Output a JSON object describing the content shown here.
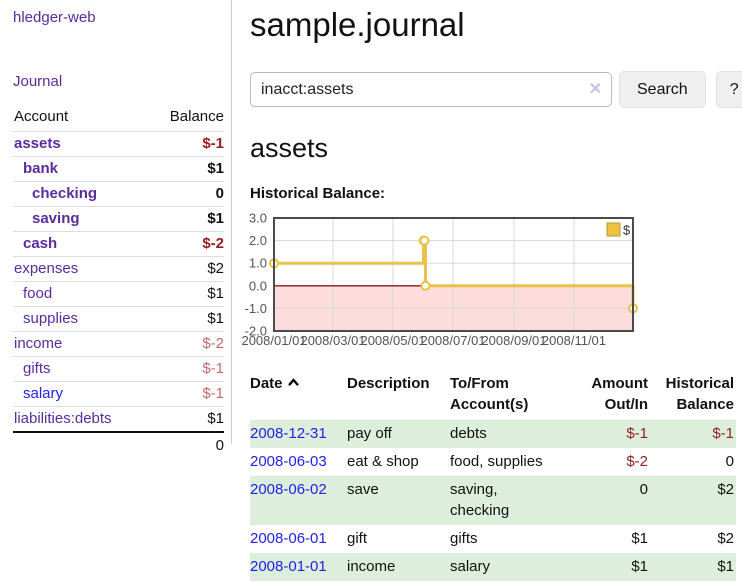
{
  "sidebar": {
    "brand": "hledger-web",
    "journal_link": "Journal",
    "accounts_table": {
      "col_account": "Account",
      "col_balance": "Balance",
      "rows": [
        {
          "name": "assets",
          "balance": "$-1",
          "level": 1,
          "bold": true,
          "balance_style": "neg-strong"
        },
        {
          "name": "bank",
          "balance": "$1",
          "level": 2,
          "bold": true,
          "balance_style": "strong"
        },
        {
          "name": "checking",
          "balance": "0",
          "level": 3,
          "bold": true,
          "balance_style": "strong"
        },
        {
          "name": "saving",
          "balance": "$1",
          "level": 3,
          "bold": true,
          "balance_style": "strong"
        },
        {
          "name": "cash",
          "balance": "$-2",
          "level": 2,
          "bold": true,
          "balance_style": "neg-strong"
        },
        {
          "name": "expenses",
          "balance": "$2",
          "level": 1,
          "bold": false,
          "balance_style": "plain"
        },
        {
          "name": "food",
          "balance": "$1",
          "level": 2,
          "bold": false,
          "balance_style": "plain"
        },
        {
          "name": "supplies",
          "balance": "$1",
          "level": 2,
          "bold": false,
          "balance_style": "plain"
        },
        {
          "name": "income",
          "balance": "$-2",
          "level": 1,
          "bold": false,
          "balance_style": "neg-dim"
        },
        {
          "name": "gifts",
          "balance": "$-1",
          "level": 2,
          "bold": false,
          "balance_style": "neg-dim"
        },
        {
          "name": "salary",
          "balance": "$-1",
          "level": 2,
          "bold": false,
          "link_color": "blue",
          "balance_style": "neg-dim"
        },
        {
          "name": "liabilities:debts",
          "balance": "$1",
          "level": 1,
          "bold": false,
          "balance_style": "plain"
        }
      ],
      "total": "0"
    }
  },
  "header": {
    "title": "sample.journal"
  },
  "search": {
    "query": "inacct:assets",
    "clear_icon": "✕",
    "button_label": "Search",
    "help_label": "?"
  },
  "account_page": {
    "heading": "assets",
    "chart_label": "Historical Balance:"
  },
  "chart_data": {
    "type": "line",
    "step": true,
    "title": "Historical Balance:",
    "series": [
      {
        "name": "$",
        "color": "#e8c24a",
        "points": [
          {
            "date": "2008-01-01",
            "day": 0,
            "value": 1
          },
          {
            "date": "2008-06-01",
            "day": 152,
            "value": 2
          },
          {
            "date": "2008-06-02",
            "day": 153,
            "value": 2
          },
          {
            "date": "2008-06-03",
            "day": 154,
            "value": 0
          },
          {
            "date": "2008-12-31",
            "day": 365,
            "value": -1
          }
        ]
      }
    ],
    "x_ticks": [
      {
        "label": "2008/01/01",
        "day": 0
      },
      {
        "label": "2008/03/01",
        "day": 60
      },
      {
        "label": "2008/05/01",
        "day": 121
      },
      {
        "label": "2008/07/01",
        "day": 182
      },
      {
        "label": "2008/09/01",
        "day": 244
      },
      {
        "label": "2008/11/01",
        "day": 305
      }
    ],
    "x_range_days": 365,
    "y_ticks": [
      "3.0",
      "2.0",
      "1.0",
      "0.0",
      "-1.0",
      "-2.0"
    ],
    "ylim": [
      -2,
      3
    ],
    "grid": true,
    "legend_position": "top-right",
    "colors": {
      "gridline": "#d8d8d8",
      "border": "#4a4a4a",
      "negative_region": "#fcdcdc",
      "zero_line": "#8b1a1a",
      "tick_text": "#545454",
      "legend_swatch": "#edc240",
      "legend_swatch_border": "#b89a35"
    }
  },
  "register_table": {
    "columns": {
      "date": "Date",
      "description": "Description",
      "accounts": "To/From Account(s)",
      "amount": "Amount Out/In",
      "balance": "Historical Balance"
    },
    "sort_icon": "chevron-up-icon",
    "rows": [
      {
        "date": "2008-12-31",
        "description": "pay off",
        "accounts": "debts",
        "amount": "$-1",
        "amount_negative": true,
        "balance": "$-1",
        "balance_negative": true
      },
      {
        "date": "2008-06-03",
        "description": "eat & shop",
        "accounts": "food, supplies",
        "amount": "$-2",
        "amount_negative": true,
        "balance": "0",
        "balance_negative": false
      },
      {
        "date": "2008-06-02",
        "description": "save",
        "accounts": "saving,\nchecking",
        "amount": "0",
        "amount_negative": false,
        "balance": "$2",
        "balance_negative": false
      },
      {
        "date": "2008-06-01",
        "description": "gift",
        "accounts": "gifts",
        "amount": "$1",
        "amount_negative": false,
        "balance": "$2",
        "balance_negative": false
      },
      {
        "date": "2008-01-01",
        "description": "income",
        "accounts": "salary",
        "amount": "$1",
        "amount_negative": false,
        "balance": "$1",
        "balance_negative": false
      }
    ]
  }
}
